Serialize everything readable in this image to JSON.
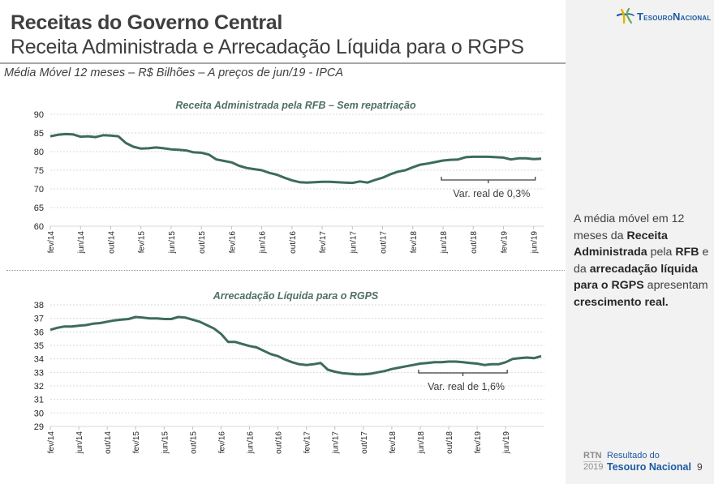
{
  "header": {
    "title": "Receitas do Governo Central",
    "subtitle": "Receita Administrada e Arrecadação Líquida para o RGPS",
    "note": "Média Móvel 12 meses – R$ Bilhões – A preços de jun/19 - IPCA"
  },
  "logo": {
    "icon": "tesouro-star-icon",
    "text_first": "Tesouro",
    "text_second": "Nacional"
  },
  "sidebar": {
    "text_parts": [
      {
        "t": "A média móvel em 12 meses da ",
        "b": false
      },
      {
        "t": "Receita Administrada",
        "b": true
      },
      {
        "t": " pela ",
        "b": false
      },
      {
        "t": "RFB",
        "b": true
      },
      {
        "t": " e da ",
        "b": false
      },
      {
        "t": "arrecadação líquida para o RGPS",
        "b": true
      },
      {
        "t": " apresentam ",
        "b": false
      },
      {
        "t": "crescimento real.",
        "b": true
      }
    ]
  },
  "footer": {
    "rtn": "RTN",
    "year": "2019",
    "line1": "Resultado do",
    "line2": "Tesouro Nacional",
    "page": "9"
  },
  "colors": {
    "line": "#3d6b5f",
    "title": "#4f6f66",
    "grid": "#d9d9d9",
    "panel": "#f2f2f2",
    "brand": "#1d5aa1"
  },
  "chart_data": [
    {
      "type": "line",
      "title": "Receita Administrada pela RFB – Sem repatriação",
      "xlabel": "",
      "ylabel": "",
      "ylim": [
        60,
        90
      ],
      "yticks": [
        60,
        65,
        70,
        75,
        80,
        85,
        90
      ],
      "grid": true,
      "x_start": "fev/14",
      "x_end": "jun/19",
      "xtick_labels": [
        "fev/14",
        "jun/14",
        "out/14",
        "fev/15",
        "jun/15",
        "out/15",
        "fev/16",
        "jun/16",
        "out/16",
        "fev/17",
        "jun/17",
        "out/17",
        "fev/18",
        "jun/18",
        "out/18",
        "fev/19",
        "jun/19"
      ],
      "series": [
        {
          "name": "Receita Administrada pela RFB",
          "values": [
            84.1,
            84.5,
            84.7,
            84.6,
            84.0,
            84.1,
            83.9,
            84.4,
            84.3,
            84.1,
            82.3,
            81.3,
            80.8,
            80.9,
            81.1,
            80.9,
            80.6,
            80.5,
            80.3,
            79.8,
            79.7,
            79.2,
            77.9,
            77.5,
            77.1,
            76.2,
            75.6,
            75.3,
            75.0,
            74.3,
            73.8,
            73.0,
            72.3,
            71.8,
            71.7,
            71.8,
            71.9,
            71.9,
            71.8,
            71.7,
            71.6,
            72.0,
            71.7,
            72.4,
            73.0,
            73.9,
            74.6,
            75.0,
            75.8,
            76.5,
            76.8,
            77.2,
            77.6,
            77.8,
            77.9,
            78.5,
            78.6,
            78.6,
            78.6,
            78.5,
            78.4,
            77.9,
            78.2,
            78.2,
            78.0,
            78.1
          ]
        }
      ],
      "annotation": {
        "text": "Var. real de 0,3%",
        "from": "jun/18",
        "to": "jun/19"
      }
    },
    {
      "type": "line",
      "title": "Arrecadação Líquida para o RGPS",
      "xlabel": "",
      "ylabel": "",
      "ylim": [
        29,
        38
      ],
      "yticks": [
        29,
        30,
        31,
        32,
        33,
        34,
        35,
        36,
        37,
        38
      ],
      "grid": true,
      "x_start": "fev/14",
      "x_end": "jun/19",
      "xtick_labels": [
        "fev/14",
        "jun/14",
        "out/14",
        "fev/15",
        "jun/15",
        "out/15",
        "fev/16",
        "jun/16",
        "out/16",
        "fev/17",
        "jun/17",
        "out/17",
        "fev/18",
        "jun/18",
        "out/18",
        "fev/19",
        "jun/19"
      ],
      "series": [
        {
          "name": "Arrecadação Líquida para o RGPS",
          "values": [
            36.15,
            36.3,
            36.4,
            36.4,
            36.45,
            36.5,
            36.6,
            36.65,
            36.75,
            36.85,
            36.9,
            36.95,
            37.1,
            37.05,
            37.0,
            37.0,
            36.95,
            36.95,
            37.1,
            37.05,
            36.9,
            36.75,
            36.5,
            36.25,
            35.85,
            35.25,
            35.25,
            35.1,
            34.95,
            34.85,
            34.6,
            34.35,
            34.2,
            33.95,
            33.75,
            33.6,
            33.55,
            33.6,
            33.7,
            33.2,
            33.05,
            32.95,
            32.9,
            32.85,
            32.85,
            32.9,
            33.0,
            33.1,
            33.25,
            33.35,
            33.45,
            33.55,
            33.65,
            33.7,
            33.75,
            33.75,
            33.8,
            33.8,
            33.75,
            33.7,
            33.65,
            33.55,
            33.6,
            33.6,
            33.75,
            34.0,
            34.05,
            34.1,
            34.05,
            34.2
          ]
        }
      ],
      "annotation": {
        "text": "Var. real de 1,6%",
        "from": "jun/18",
        "to": "jun/19"
      }
    }
  ]
}
